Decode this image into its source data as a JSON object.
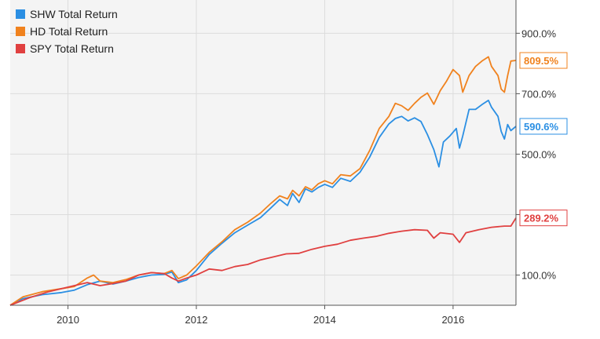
{
  "chart_data": {
    "type": "line",
    "title": "",
    "xlabel": "",
    "ylabel": "",
    "grid": true,
    "legend_placement": "top-left",
    "xlim": [
      2009.1,
      2016.98
    ],
    "ylim": [
      0,
      1010
    ],
    "x_ticks": [
      2010,
      2012,
      2014,
      2016
    ],
    "x_tick_labels": [
      "2010",
      "2012",
      "2014",
      "2016"
    ],
    "y_ticks": [
      100,
      300,
      500,
      700,
      900
    ],
    "y_tick_labels": [
      "100.0%",
      "",
      "500.0%",
      "700.0%",
      "900.0%"
    ],
    "series": [
      {
        "name": "SHW Total Return",
        "color": "#2b8fe3",
        "end_label": "590.6%",
        "points": [
          [
            2009.1,
            0
          ],
          [
            2009.3,
            22
          ],
          [
            2009.6,
            35
          ],
          [
            2009.9,
            42
          ],
          [
            2010.1,
            50
          ],
          [
            2010.3,
            68
          ],
          [
            2010.5,
            80
          ],
          [
            2010.7,
            70
          ],
          [
            2010.9,
            80
          ],
          [
            2011.1,
            92
          ],
          [
            2011.3,
            100
          ],
          [
            2011.5,
            102
          ],
          [
            2011.62,
            110
          ],
          [
            2011.72,
            75
          ],
          [
            2011.85,
            84
          ],
          [
            2012.0,
            115
          ],
          [
            2012.2,
            168
          ],
          [
            2012.4,
            205
          ],
          [
            2012.6,
            240
          ],
          [
            2012.8,
            265
          ],
          [
            2013.0,
            290
          ],
          [
            2013.15,
            320
          ],
          [
            2013.3,
            350
          ],
          [
            2013.42,
            330
          ],
          [
            2013.5,
            370
          ],
          [
            2013.6,
            340
          ],
          [
            2013.7,
            385
          ],
          [
            2013.8,
            375
          ],
          [
            2013.9,
            390
          ],
          [
            2014.0,
            400
          ],
          [
            2014.12,
            390
          ],
          [
            2014.25,
            420
          ],
          [
            2014.4,
            410
          ],
          [
            2014.55,
            440
          ],
          [
            2014.7,
            490
          ],
          [
            2014.85,
            555
          ],
          [
            2015.0,
            600
          ],
          [
            2015.1,
            618
          ],
          [
            2015.2,
            625
          ],
          [
            2015.3,
            610
          ],
          [
            2015.4,
            620
          ],
          [
            2015.5,
            608
          ],
          [
            2015.6,
            565
          ],
          [
            2015.7,
            515
          ],
          [
            2015.78,
            458
          ],
          [
            2015.85,
            540
          ],
          [
            2015.95,
            560
          ],
          [
            2016.05,
            585
          ],
          [
            2016.1,
            520
          ],
          [
            2016.15,
            560
          ],
          [
            2016.25,
            648
          ],
          [
            2016.35,
            648
          ],
          [
            2016.45,
            664
          ],
          [
            2016.55,
            678
          ],
          [
            2016.6,
            655
          ],
          [
            2016.7,
            625
          ],
          [
            2016.75,
            575
          ],
          [
            2016.8,
            550
          ],
          [
            2016.85,
            598
          ],
          [
            2016.9,
            578
          ],
          [
            2016.98,
            592
          ]
        ]
      },
      {
        "name": "HD Total Return",
        "color": "#f0821e",
        "end_label": "809.5%",
        "points": [
          [
            2009.1,
            0
          ],
          [
            2009.3,
            28
          ],
          [
            2009.6,
            45
          ],
          [
            2009.9,
            55
          ],
          [
            2010.1,
            62
          ],
          [
            2010.3,
            90
          ],
          [
            2010.4,
            100
          ],
          [
            2010.5,
            80
          ],
          [
            2010.7,
            75
          ],
          [
            2010.9,
            85
          ],
          [
            2011.1,
            100
          ],
          [
            2011.3,
            108
          ],
          [
            2011.5,
            105
          ],
          [
            2011.62,
            115
          ],
          [
            2011.72,
            88
          ],
          [
            2011.85,
            100
          ],
          [
            2012.0,
            130
          ],
          [
            2012.2,
            175
          ],
          [
            2012.4,
            210
          ],
          [
            2012.6,
            250
          ],
          [
            2012.8,
            275
          ],
          [
            2013.0,
            305
          ],
          [
            2013.15,
            335
          ],
          [
            2013.3,
            362
          ],
          [
            2013.42,
            352
          ],
          [
            2013.5,
            380
          ],
          [
            2013.6,
            362
          ],
          [
            2013.7,
            392
          ],
          [
            2013.8,
            382
          ],
          [
            2013.9,
            402
          ],
          [
            2014.0,
            412
          ],
          [
            2014.12,
            402
          ],
          [
            2014.25,
            432
          ],
          [
            2014.4,
            428
          ],
          [
            2014.55,
            452
          ],
          [
            2014.7,
            512
          ],
          [
            2014.85,
            585
          ],
          [
            2015.0,
            625
          ],
          [
            2015.1,
            668
          ],
          [
            2015.2,
            660
          ],
          [
            2015.3,
            645
          ],
          [
            2015.4,
            668
          ],
          [
            2015.5,
            688
          ],
          [
            2015.6,
            702
          ],
          [
            2015.7,
            665
          ],
          [
            2015.8,
            710
          ],
          [
            2015.9,
            742
          ],
          [
            2016.0,
            780
          ],
          [
            2016.1,
            760
          ],
          [
            2016.15,
            705
          ],
          [
            2016.25,
            760
          ],
          [
            2016.35,
            790
          ],
          [
            2016.45,
            808
          ],
          [
            2016.55,
            822
          ],
          [
            2016.6,
            790
          ],
          [
            2016.7,
            760
          ],
          [
            2016.75,
            715
          ],
          [
            2016.8,
            705
          ],
          [
            2016.85,
            760
          ],
          [
            2016.9,
            808
          ],
          [
            2016.98,
            810
          ]
        ]
      },
      {
        "name": "SPY Total Return",
        "color": "#e04040",
        "end_label": "289.2%",
        "points": [
          [
            2009.1,
            0
          ],
          [
            2009.4,
            25
          ],
          [
            2009.7,
            45
          ],
          [
            2010.0,
            60
          ],
          [
            2010.3,
            75
          ],
          [
            2010.5,
            65
          ],
          [
            2010.7,
            72
          ],
          [
            2010.9,
            80
          ],
          [
            2011.1,
            100
          ],
          [
            2011.3,
            108
          ],
          [
            2011.5,
            105
          ],
          [
            2011.62,
            90
          ],
          [
            2011.72,
            80
          ],
          [
            2011.85,
            90
          ],
          [
            2012.0,
            100
          ],
          [
            2012.2,
            120
          ],
          [
            2012.4,
            115
          ],
          [
            2012.6,
            128
          ],
          [
            2012.8,
            135
          ],
          [
            2013.0,
            150
          ],
          [
            2013.2,
            160
          ],
          [
            2013.4,
            170
          ],
          [
            2013.6,
            172
          ],
          [
            2013.8,
            185
          ],
          [
            2014.0,
            195
          ],
          [
            2014.2,
            202
          ],
          [
            2014.4,
            215
          ],
          [
            2014.6,
            222
          ],
          [
            2014.8,
            228
          ],
          [
            2015.0,
            238
          ],
          [
            2015.2,
            245
          ],
          [
            2015.4,
            250
          ],
          [
            2015.6,
            248
          ],
          [
            2015.7,
            222
          ],
          [
            2015.8,
            240
          ],
          [
            2016.0,
            235
          ],
          [
            2016.1,
            208
          ],
          [
            2016.2,
            240
          ],
          [
            2016.4,
            250
          ],
          [
            2016.6,
            258
          ],
          [
            2016.8,
            262
          ],
          [
            2016.9,
            262
          ],
          [
            2016.98,
            289
          ]
        ]
      }
    ]
  }
}
